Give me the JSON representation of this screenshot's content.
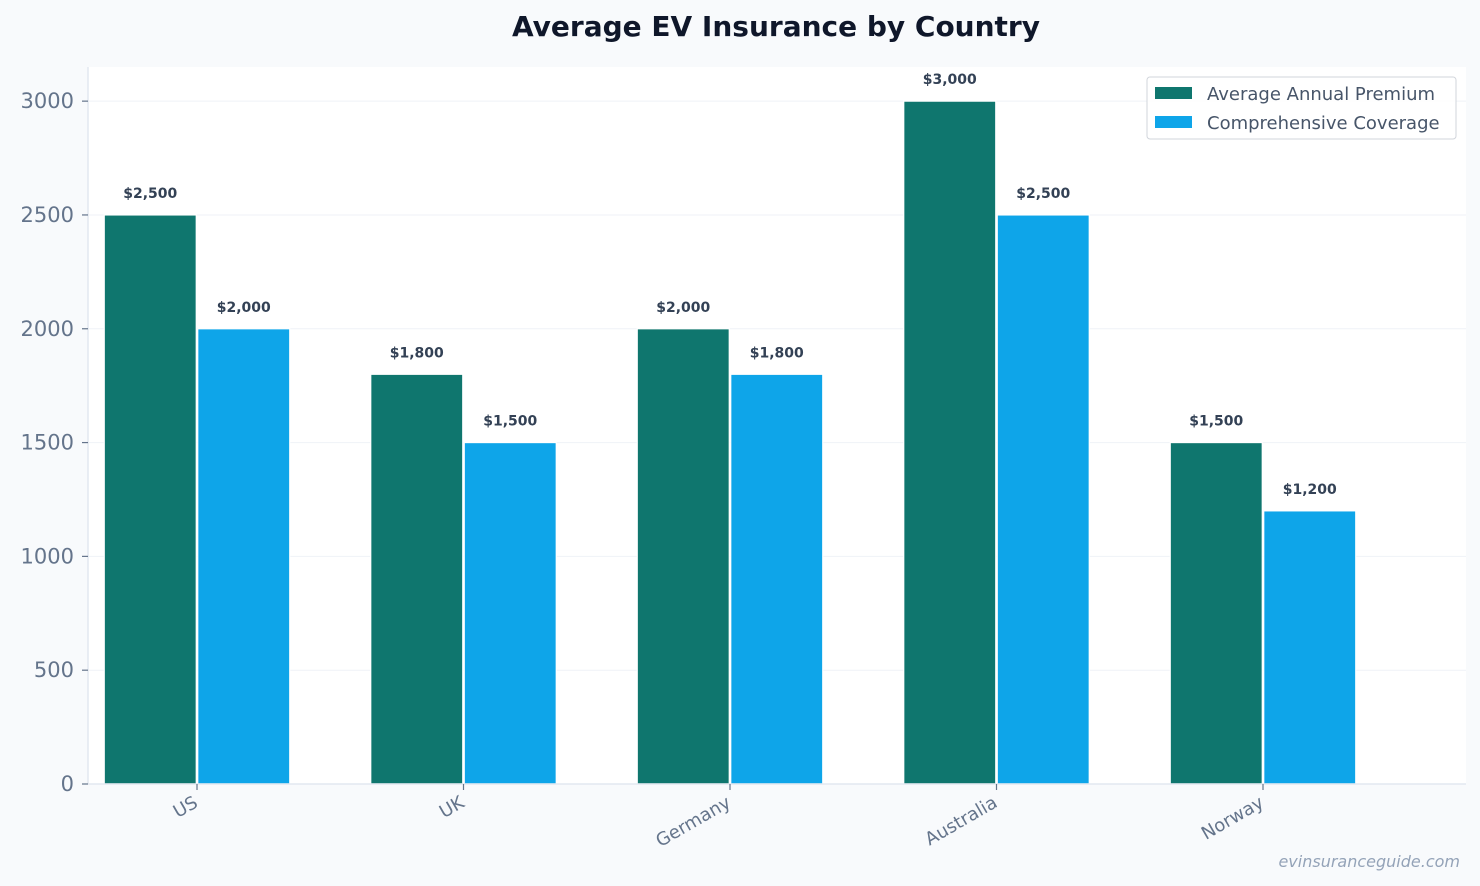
{
  "chart_data": {
    "type": "bar",
    "title": "Average EV Insurance by Country",
    "xlabel": "",
    "ylabel": "",
    "categories": [
      "US",
      "UK",
      "Germany",
      "Australia",
      "Norway"
    ],
    "series": [
      {
        "name": "Average Annual Premium",
        "color": "#0f766e",
        "values": [
          2500,
          1800,
          2000,
          3000,
          1500
        ],
        "labels": [
          "$2,500",
          "$1,800",
          "$2,000",
          "$3,000",
          "$1,500"
        ]
      },
      {
        "name": "Comprehensive Coverage",
        "color": "#0ea5e9",
        "values": [
          2000,
          1500,
          1800,
          2500,
          1200
        ],
        "labels": [
          "$2,000",
          "$1,500",
          "$1,800",
          "$2,500",
          "$1,200"
        ]
      }
    ],
    "ylim": [
      0,
      3150
    ],
    "yticks": [
      "0",
      "500",
      "1000",
      "1500",
      "2000",
      "2500",
      "3000"
    ],
    "grid": true,
    "legend_position": "top-right"
  },
  "watermark": "evinsuranceguide.com"
}
